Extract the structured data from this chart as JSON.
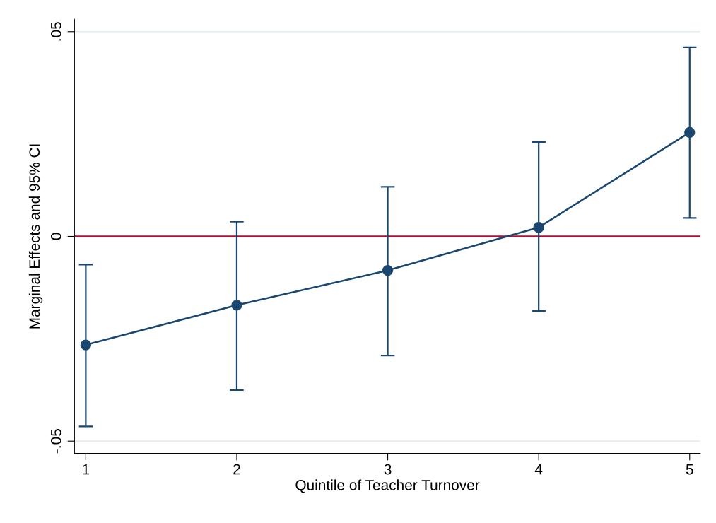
{
  "chart_data": {
    "type": "line",
    "xlabel": "Quintile of Teacher Turnover",
    "ylabel": "Marginal Effects and 95% CI",
    "x": [
      1,
      2,
      3,
      4,
      5
    ],
    "series": [
      {
        "color": "#1a476f",
        "values": [
          -0.0265,
          -0.0168,
          -0.0083,
          0.0022,
          0.0254
        ],
        "errors": [
          [
            -0.0464,
            -0.0069
          ],
          [
            -0.0375,
            0.0036
          ],
          [
            -0.0291,
            0.0121
          ],
          [
            -0.0182,
            0.023
          ],
          [
            0.0045,
            0.0462
          ]
        ]
      }
    ],
    "xlim": [
      0.925,
      5.07
    ],
    "xticks": [
      1,
      2,
      3,
      4,
      5
    ],
    "ylim": [
      -0.053,
      0.053
    ],
    "yticks": [
      {
        "value": -0.05,
        "label": "-.05"
      },
      0,
      {
        "value": 0.05,
        "label": ".05"
      }
    ],
    "ref_lines": [
      {
        "axis": "y",
        "value": 0,
        "color": "#c10534"
      }
    ],
    "grid": "y",
    "marker": "circle",
    "line_style": "solid"
  }
}
